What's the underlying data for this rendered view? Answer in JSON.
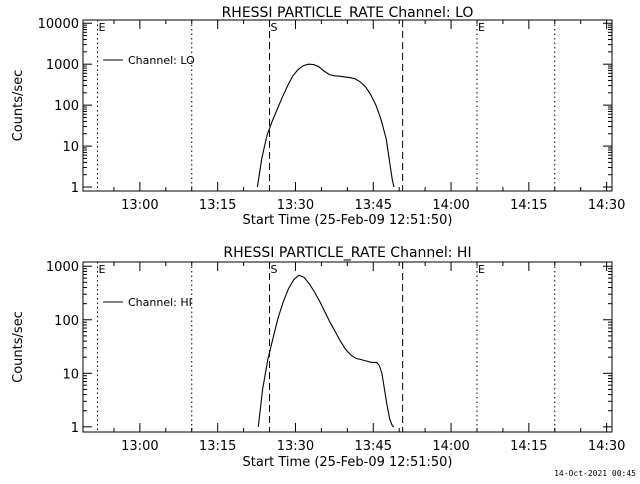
{
  "footer_stamp": "14-Oct-2021 00:45",
  "chart_data": [
    {
      "type": "line",
      "title": "RHESSI PARTICLE_RATE Channel: LO",
      "xlabel": "Start Time (25-Feb-09 12:51:50)",
      "ylabel": "Counts/sec",
      "yscale": "log",
      "ylim": [
        0.8,
        12000
      ],
      "xlim_minutes": [
        -2.8,
        99.2
      ],
      "xticks": [
        "13:00",
        "13:15",
        "13:30",
        "13:45",
        "14:00",
        "14:15",
        "14:30"
      ],
      "yticks": [
        "1",
        "10",
        "100",
        "1000",
        "10000"
      ],
      "legend": "Channel: LO",
      "legend_position": "top-left",
      "markers": [
        {
          "label": "E",
          "x": "12:51:50",
          "style": "dotted"
        },
        {
          "label": "",
          "x": "13:10:00",
          "style": "dotted"
        },
        {
          "label": "S",
          "x": "13:25:00",
          "style": "dashed"
        },
        {
          "label": "",
          "x": "13:50:40",
          "style": "dashed"
        },
        {
          "label": "E",
          "x": "14:05:00",
          "style": "dotted"
        },
        {
          "label": "",
          "x": "14:20:00",
          "style": "dotted"
        }
      ],
      "series": [
        {
          "name": "Channel: LO",
          "x": [
            "13:22:40",
            "13:23:30",
            "13:24:30",
            "13:25:30",
            "13:26:30",
            "13:27:30",
            "13:28:30",
            "13:29:30",
            "13:30:30",
            "13:31:30",
            "13:32:30",
            "13:33:30",
            "13:34:30",
            "13:35:30",
            "13:36:30",
            "13:37:30",
            "13:38:30",
            "13:39:30",
            "13:40:30",
            "13:41:30",
            "13:42:30",
            "13:43:30",
            "13:44:30",
            "13:45:30",
            "13:46:30",
            "13:47:30",
            "13:48:10",
            "13:48:40",
            "13:49:00"
          ],
          "y": [
            1,
            5,
            18,
            40,
            80,
            160,
            300,
            520,
            740,
            920,
            1000,
            980,
            870,
            680,
            560,
            520,
            510,
            490,
            470,
            440,
            370,
            280,
            180,
            100,
            45,
            15,
            4,
            1.5,
            1
          ]
        }
      ]
    },
    {
      "type": "line",
      "title": "RHESSI PARTICLE_RATE Channel: HI",
      "xlabel": "Start Time (25-Feb-09 12:51:50)",
      "ylabel": "Counts/sec",
      "yscale": "log",
      "ylim": [
        0.8,
        1200
      ],
      "xlim_minutes": [
        -2.8,
        99.2
      ],
      "xticks": [
        "13:00",
        "13:15",
        "13:30",
        "13:45",
        "14:00",
        "14:15",
        "14:30"
      ],
      "yticks": [
        "1",
        "10",
        "100",
        "1000"
      ],
      "legend": "Channel: HI",
      "legend_position": "top-left",
      "markers": [
        {
          "label": "E",
          "x": "12:51:50",
          "style": "dotted"
        },
        {
          "label": "",
          "x": "13:10:00",
          "style": "dotted"
        },
        {
          "label": "S",
          "x": "13:25:00",
          "style": "dashed"
        },
        {
          "label": "",
          "x": "13:50:40",
          "style": "dashed"
        },
        {
          "label": "E",
          "x": "14:05:00",
          "style": "dotted"
        },
        {
          "label": "",
          "x": "14:20:00",
          "style": "dotted"
        }
      ],
      "series": [
        {
          "name": "Channel: HI",
          "x": [
            "13:22:50",
            "13:23:40",
            "13:24:40",
            "13:25:40",
            "13:26:40",
            "13:27:40",
            "13:28:40",
            "13:29:40",
            "13:30:40",
            "13:31:40",
            "13:32:40",
            "13:33:40",
            "13:34:40",
            "13:35:40",
            "13:36:40",
            "13:37:40",
            "13:38:40",
            "13:39:40",
            "13:40:40",
            "13:41:40",
            "13:42:40",
            "13:43:40",
            "13:44:40",
            "13:45:40",
            "13:46:10",
            "13:46:40",
            "13:47:10",
            "13:47:40",
            "13:48:10",
            "13:48:40",
            "13:49:00"
          ],
          "y": [
            1,
            5,
            18,
            45,
            110,
            220,
            380,
            560,
            680,
            620,
            470,
            330,
            220,
            140,
            90,
            60,
            40,
            28,
            22,
            19,
            18,
            17,
            16,
            16,
            14,
            10,
            5,
            2.5,
            1.4,
            1.05,
            1
          ]
        }
      ]
    }
  ]
}
